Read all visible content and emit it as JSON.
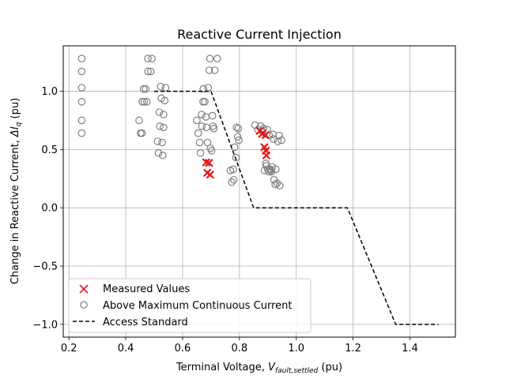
{
  "chart_data": {
    "type": "scatter",
    "title": "Reactive Current Injection",
    "xlabel": {
      "main": "Terminal Voltage, ",
      "var": "V",
      "sub": "fault,settled",
      "unit": " (pu)"
    },
    "ylabel": {
      "main": "Change in Reactive Current, ",
      "var": "ΔI",
      "sub": "q",
      "unit": " (pu)"
    },
    "xlim": [
      0.18,
      1.56
    ],
    "ylim": [
      -1.11,
      1.39
    ],
    "xticks": [
      0.2,
      0.4,
      0.6,
      0.8,
      1.0,
      1.2,
      1.4
    ],
    "xtick_labels": [
      "0.2",
      "0.4",
      "0.6",
      "0.8",
      "1.0",
      "1.2",
      "1.4"
    ],
    "yticks": [
      -1.0,
      -0.5,
      0.0,
      0.5,
      1.0
    ],
    "ytick_labels": [
      "−1.0",
      "−0.5",
      "0.0",
      "0.5",
      "1.0"
    ],
    "grid": true,
    "legend_position": "lower-left",
    "series": [
      {
        "name": "Measured Values",
        "marker": "x",
        "color": "#e31a1c",
        "points": [
          [
            0.683,
            0.39
          ],
          [
            0.693,
            0.385
          ],
          [
            0.687,
            0.3
          ],
          [
            0.697,
            0.285
          ],
          [
            0.872,
            0.66
          ],
          [
            0.88,
            0.635
          ],
          [
            0.892,
            0.625
          ],
          [
            0.888,
            0.52
          ],
          [
            0.893,
            0.49
          ],
          [
            0.895,
            0.45
          ]
        ]
      },
      {
        "name": "Above Maximum Continuous Current",
        "marker": "o",
        "color": "#808080",
        "points": [
          [
            0.245,
            1.28
          ],
          [
            0.245,
            1.17
          ],
          [
            0.245,
            1.03
          ],
          [
            0.245,
            0.91
          ],
          [
            0.245,
            0.75
          ],
          [
            0.245,
            0.64
          ],
          [
            0.447,
            0.75
          ],
          [
            0.452,
            0.64
          ],
          [
            0.458,
            0.91
          ],
          [
            0.463,
            1.02
          ],
          [
            0.47,
            1.02
          ],
          [
            0.474,
            0.91
          ],
          [
            0.478,
            1.17
          ],
          [
            0.478,
            1.28
          ],
          [
            0.488,
            1.17
          ],
          [
            0.492,
            1.28
          ],
          [
            0.457,
            0.64
          ],
          [
            0.465,
            0.91
          ],
          [
            0.512,
            0.57
          ],
          [
            0.515,
            0.47
          ],
          [
            0.518,
            0.82
          ],
          [
            0.52,
            0.7
          ],
          [
            0.523,
            1.04
          ],
          [
            0.525,
            0.94
          ],
          [
            0.528,
            0.56
          ],
          [
            0.53,
            0.45
          ],
          [
            0.533,
            0.8
          ],
          [
            0.533,
            0.69
          ],
          [
            0.537,
            0.92
          ],
          [
            0.54,
            1.03
          ],
          [
            0.65,
            0.75
          ],
          [
            0.655,
            0.64
          ],
          [
            0.66,
            0.56
          ],
          [
            0.663,
            0.47
          ],
          [
            0.667,
            0.8
          ],
          [
            0.668,
            0.7
          ],
          [
            0.672,
            0.91
          ],
          [
            0.673,
            1.02
          ],
          [
            0.678,
            0.91
          ],
          [
            0.682,
            0.78
          ],
          [
            0.684,
            0.69
          ],
          [
            0.688,
            0.56
          ],
          [
            0.69,
            1.03
          ],
          [
            0.694,
            1.18
          ],
          [
            0.696,
            1.28
          ],
          [
            0.698,
            0.51
          ],
          [
            0.702,
            0.49
          ],
          [
            0.705,
            0.79
          ],
          [
            0.707,
            0.7
          ],
          [
            0.71,
            0.68
          ],
          [
            0.713,
            1.18
          ],
          [
            0.722,
            1.28
          ],
          [
            0.768,
            0.32
          ],
          [
            0.773,
            0.22
          ],
          [
            0.778,
            0.33
          ],
          [
            0.78,
            0.24
          ],
          [
            0.783,
            0.52
          ],
          [
            0.788,
            0.43
          ],
          [
            0.79,
            0.69
          ],
          [
            0.794,
            0.61
          ],
          [
            0.796,
            0.68
          ],
          [
            0.798,
            0.58
          ],
          [
            0.855,
            0.71
          ],
          [
            0.865,
            0.67
          ],
          [
            0.875,
            0.7
          ],
          [
            0.88,
            0.66
          ],
          [
            0.885,
            0.68
          ],
          [
            0.888,
            0.32
          ],
          [
            0.893,
            0.38
          ],
          [
            0.895,
            0.36
          ],
          [
            0.898,
            0.67
          ],
          [
            0.9,
            0.33
          ],
          [
            0.903,
            0.31
          ],
          [
            0.905,
            0.62
          ],
          [
            0.908,
            0.33
          ],
          [
            0.91,
            0.32
          ],
          [
            0.913,
            0.31
          ],
          [
            0.915,
            0.35
          ],
          [
            0.918,
            0.63
          ],
          [
            0.92,
            0.59
          ],
          [
            0.922,
            0.24
          ],
          [
            0.926,
            0.2
          ],
          [
            0.928,
            0.33
          ],
          [
            0.932,
            0.21
          ],
          [
            0.935,
            0.57
          ],
          [
            0.94,
            0.62
          ],
          [
            0.942,
            0.19
          ],
          [
            0.948,
            0.58
          ]
        ]
      },
      {
        "name": "Access Standard",
        "line": "dashed",
        "color": "#000000",
        "points": [
          [
            0.5,
            1.0
          ],
          [
            0.7,
            1.0
          ],
          [
            0.85,
            0.0
          ],
          [
            1.18,
            0.0
          ],
          [
            1.35,
            -1.0
          ],
          [
            1.5,
            -1.0
          ]
        ]
      }
    ]
  }
}
